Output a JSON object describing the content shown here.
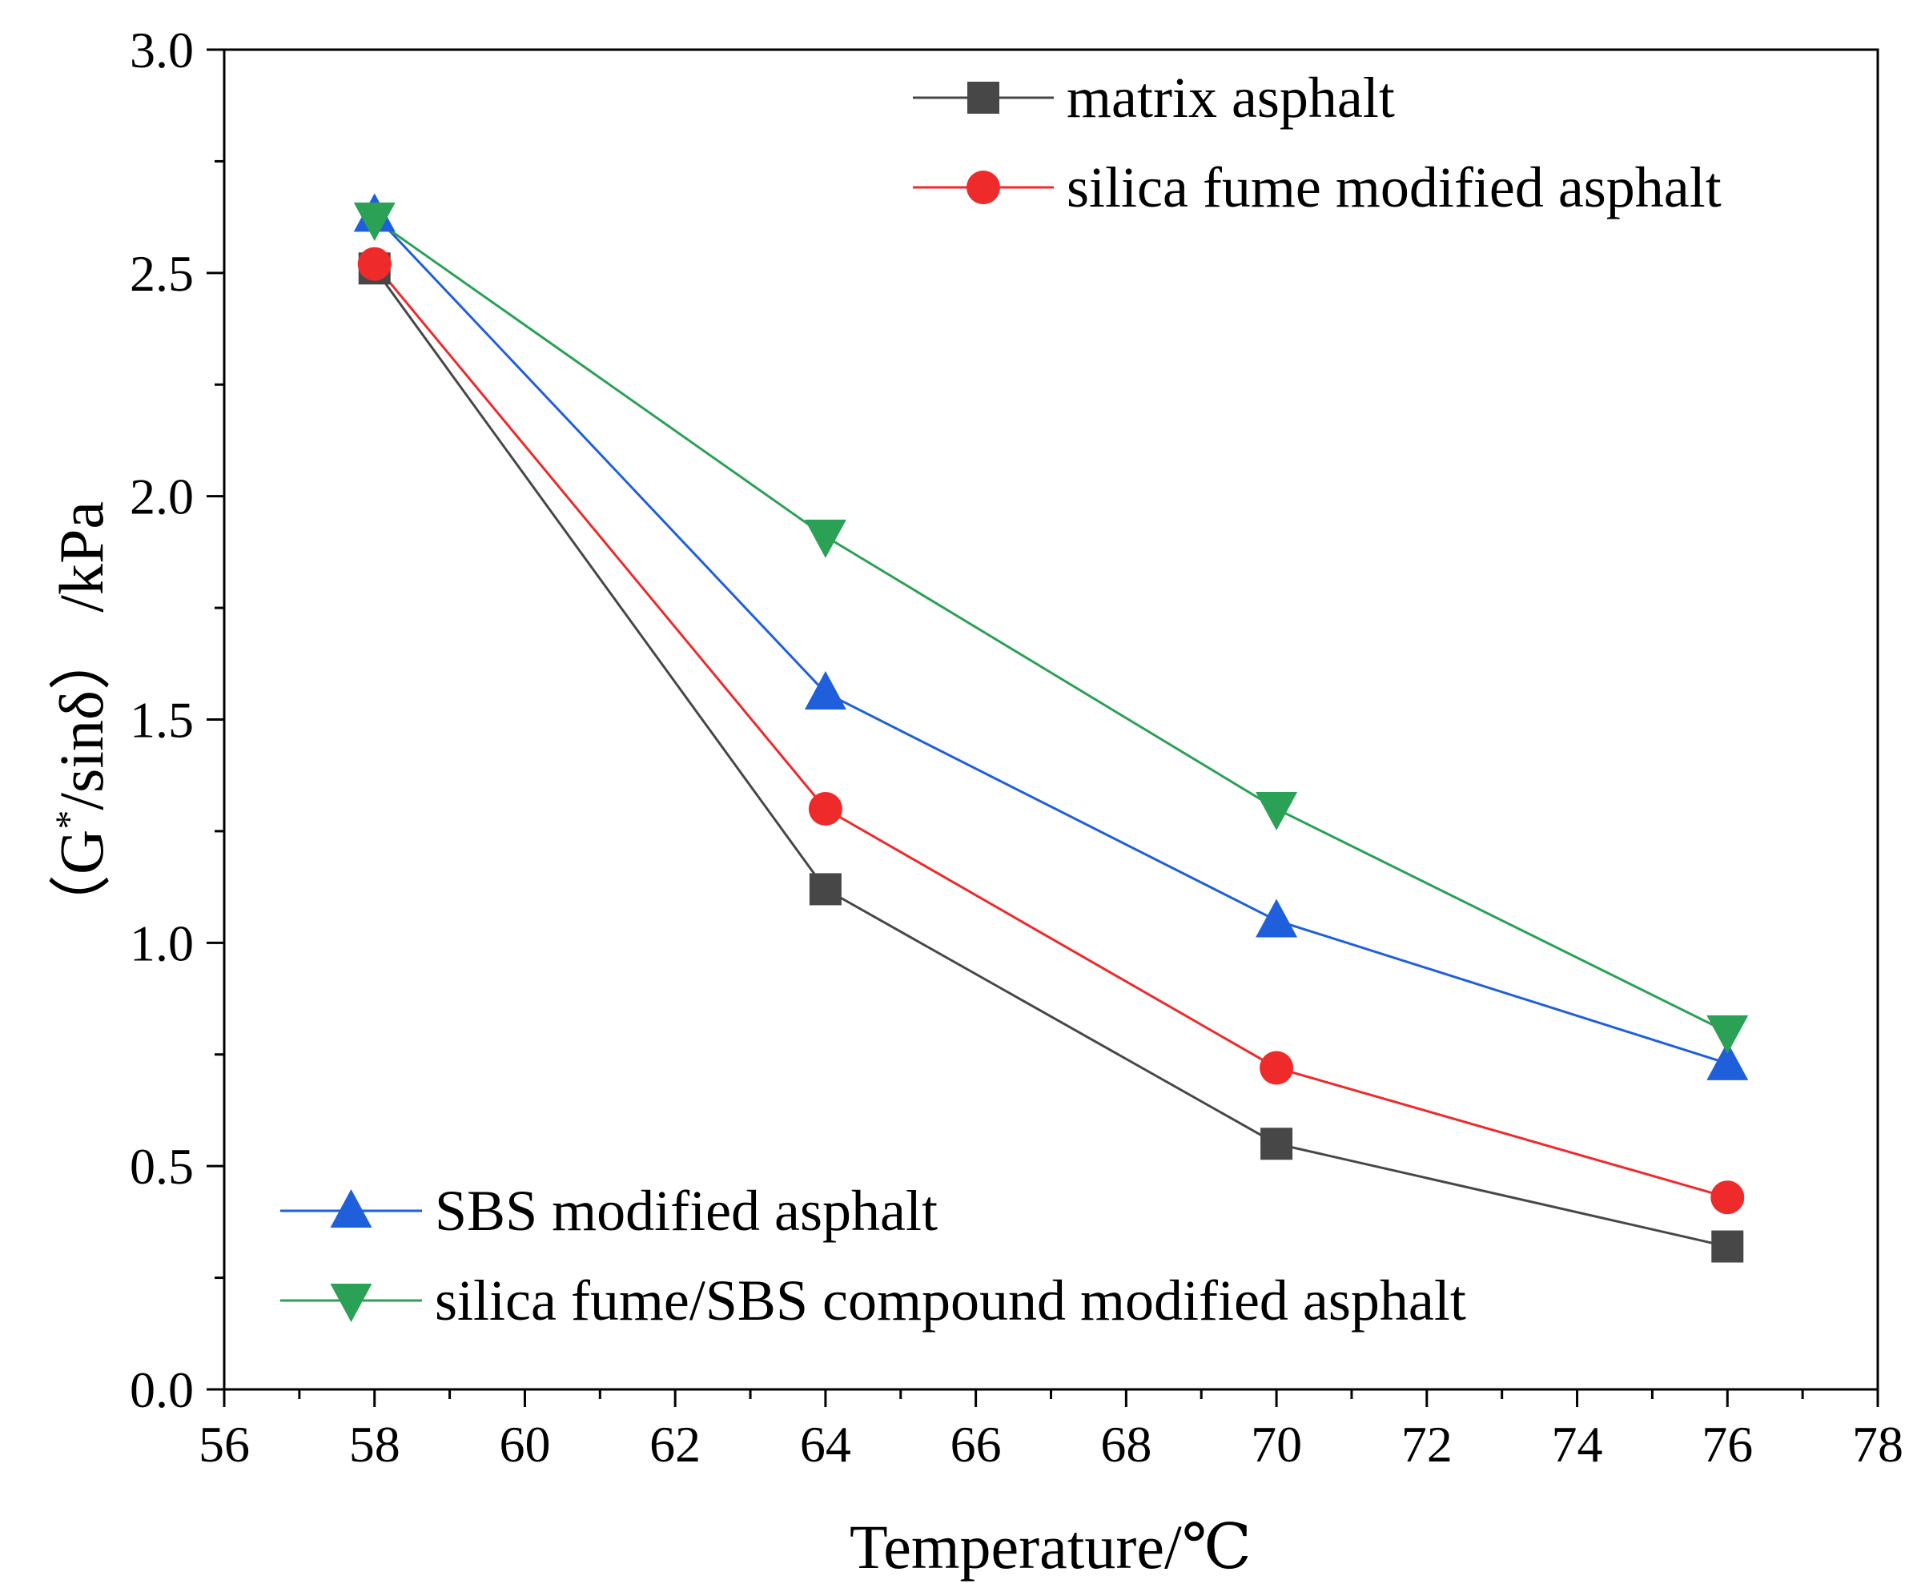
{
  "chart_data": {
    "type": "line",
    "title": "",
    "xlabel": "Temperature/℃",
    "ylabel_main": "（G",
    "ylabel_sup": "*",
    "ylabel_rest": "/sinδ） /kPa",
    "xlim": [
      56,
      78
    ],
    "ylim": [
      0.0,
      3.0
    ],
    "x_ticks": [
      56,
      58,
      60,
      62,
      64,
      66,
      68,
      70,
      72,
      74,
      76,
      78
    ],
    "x_tick_labels": [
      "56",
      "58",
      "60",
      "62",
      "64",
      "66",
      "68",
      "70",
      "72",
      "74",
      "76",
      "78"
    ],
    "y_ticks": [
      0.0,
      0.5,
      1.0,
      1.5,
      2.0,
      2.5,
      3.0
    ],
    "y_tick_labels": [
      "0.0",
      "0.5",
      "1.0",
      "1.5",
      "2.0",
      "2.5",
      "3.0"
    ],
    "grid": false,
    "x": [
      58,
      64,
      70,
      76
    ],
    "series": [
      {
        "name": "matrix asphalt",
        "values": [
          2.51,
          1.12,
          0.55,
          0.32
        ],
        "color": "#474747",
        "marker": "square",
        "legend": "upper"
      },
      {
        "name": "silica fume modified asphalt",
        "values": [
          2.52,
          1.3,
          0.72,
          0.43
        ],
        "color": "#ee2a2a",
        "marker": "circle",
        "legend": "upper"
      },
      {
        "name": "SBS modified asphalt",
        "values": [
          2.63,
          1.56,
          1.05,
          0.73
        ],
        "color": "#1f5fdc",
        "marker": "triangle-up",
        "legend": "lower"
      },
      {
        "name": "silica fume/SBS compound modified asphalt",
        "values": [
          2.62,
          1.91,
          1.3,
          0.8
        ],
        "color": "#2aa155",
        "marker": "triangle-down",
        "legend": "lower"
      }
    ],
    "legend_positions": [
      "top-right",
      "bottom-left"
    ]
  }
}
